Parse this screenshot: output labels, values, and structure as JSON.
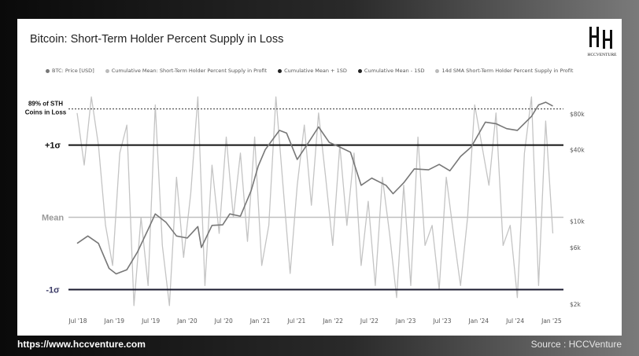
{
  "title": "Bitcoin: Short-Term Holder Percent Supply in Loss",
  "logo": {
    "text": "HCCVENTURE",
    "icon": "hcc-monogram-logo"
  },
  "legend": [
    {
      "label": "BTC: Price [USD]",
      "color": "#777777"
    },
    {
      "label": "Cumulative Mean: Short-Term Holder Percent Supply in Profit",
      "color": "#bbbbbb"
    },
    {
      "label": "Cumulative Mean + 1SD",
      "color": "#222222"
    },
    {
      "label": "Cumulative Mean - 1SD",
      "color": "#222222"
    },
    {
      "label": "14d SMA Short-Term Holder Percent Supply in Profit",
      "color": "#bbbbbb"
    }
  ],
  "levels": {
    "peak": "89% of STH Coins in Loss",
    "plus1": "+1σ",
    "mean": "Mean",
    "minus1": "-1σ"
  },
  "footer": {
    "url": "https://www.hccventure.com",
    "source": "Source : HCCVenture"
  },
  "colors": {
    "price": "#777777",
    "sma": "#c4c4c4",
    "mean": "#c0c0c0",
    "sd": "#111111",
    "sd_minus": "#1a1a2e",
    "mean_label": "#999999",
    "minus_label": "#3a3a66"
  },
  "chart_data": {
    "type": "line",
    "x_ticks": [
      "Jul '18",
      "Jan '19",
      "Jul '19",
      "Jan '20",
      "Jul '20",
      "Jan '21",
      "Jul '21",
      "Jan '22",
      "Jul '22",
      "Jan '23",
      "Jul '23",
      "Jan '24",
      "Jul '24",
      "Jan '25"
    ],
    "y_right_ticks": [
      "$80k",
      "$40k",
      "$10k",
      "$6k",
      "$2k"
    ],
    "y_right_scale": "log",
    "y_left_levels": {
      "peak": 89,
      "plus1": 80,
      "mean": 62,
      "minus1": 44
    },
    "y_left_range": [
      39,
      95
    ],
    "series": [
      {
        "name": "BTC: Price [USD]",
        "x": [
          2018.45,
          2018.6,
          2018.75,
          2018.9,
          2019.0,
          2019.15,
          2019.3,
          2019.45,
          2019.55,
          2019.7,
          2019.85,
          2020.0,
          2020.15,
          2020.2,
          2020.35,
          2020.5,
          2020.6,
          2020.75,
          2020.9,
          2021.0,
          2021.1,
          2021.3,
          2021.4,
          2021.55,
          2021.7,
          2021.85,
          2022.0,
          2022.15,
          2022.3,
          2022.45,
          2022.6,
          2022.8,
          2022.9,
          2023.05,
          2023.2,
          2023.4,
          2023.55,
          2023.7,
          2023.85,
          2024.0,
          2024.2,
          2024.35,
          2024.5,
          2024.65,
          2024.85,
          2024.95,
          2025.05,
          2025.15
        ],
        "values": [
          6500,
          7500,
          6500,
          4000,
          3600,
          3900,
          5500,
          8500,
          11500,
          9800,
          7500,
          7200,
          9000,
          6000,
          9200,
          9300,
          11500,
          11000,
          18000,
          29000,
          40000,
          58000,
          55000,
          33000,
          45000,
          62000,
          46000,
          42000,
          38000,
          20000,
          23000,
          20000,
          17000,
          21000,
          27500,
          27000,
          30000,
          26500,
          35000,
          42000,
          68000,
          66000,
          60000,
          58000,
          76000,
          95000,
          100000,
          93000
        ]
      },
      {
        "name": "14d SMA Short-Term Holder Percent Supply in Profit",
        "x": [
          2018.45,
          2018.55,
          2018.65,
          2018.75,
          2018.85,
          2018.95,
          2019.05,
          2019.15,
          2019.25,
          2019.35,
          2019.45,
          2019.55,
          2019.65,
          2019.75,
          2019.85,
          2019.95,
          2020.05,
          2020.15,
          2020.25,
          2020.35,
          2020.45,
          2020.55,
          2020.65,
          2020.75,
          2020.85,
          2020.95,
          2021.05,
          2021.15,
          2021.25,
          2021.35,
          2021.45,
          2021.55,
          2021.65,
          2021.75,
          2021.85,
          2021.95,
          2022.05,
          2022.15,
          2022.25,
          2022.35,
          2022.45,
          2022.55,
          2022.65,
          2022.75,
          2022.85,
          2022.95,
          2023.05,
          2023.15,
          2023.25,
          2023.35,
          2023.45,
          2023.55,
          2023.65,
          2023.75,
          2023.85,
          2023.95,
          2024.05,
          2024.15,
          2024.25,
          2024.35,
          2024.45,
          2024.55,
          2024.65,
          2024.75,
          2024.85,
          2024.95,
          2025.05,
          2025.15
        ],
        "values": [
          88,
          75,
          92,
          80,
          60,
          50,
          78,
          85,
          40,
          62,
          45,
          90,
          55,
          40,
          72,
          52,
          68,
          92,
          45,
          75,
          58,
          82,
          62,
          78,
          56,
          82,
          50,
          60,
          92,
          70,
          48,
          70,
          85,
          65,
          88,
          72,
          55,
          80,
          60,
          78,
          50,
          66,
          45,
          72,
          58,
          42,
          70,
          45,
          82,
          55,
          60,
          44,
          72,
          58,
          45,
          62,
          90,
          80,
          70,
          88,
          55,
          60,
          42,
          78,
          92,
          45,
          86,
          58
        ]
      }
    ]
  }
}
